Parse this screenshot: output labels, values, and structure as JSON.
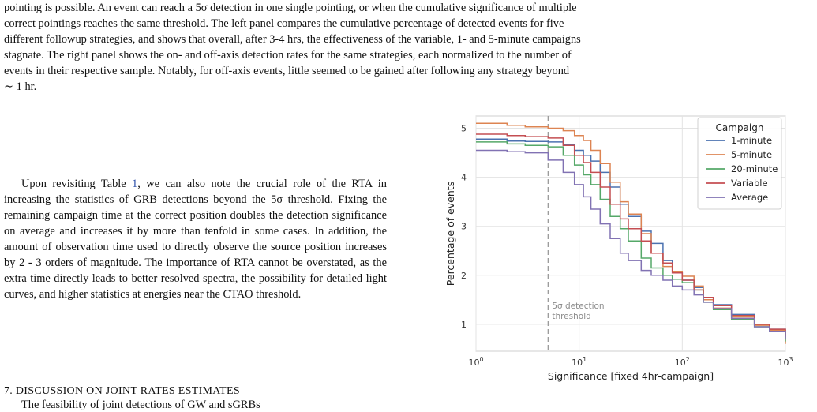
{
  "paper": {
    "intro_paragraph": [
      "pointing is possible. An event can reach a 5σ detection in one single pointing, or when the cumulative significance of multiple",
      "correct pointings reaches the same threshold. The left panel compares the cumulative percentage of detected events for five",
      "different followup strategies, and shows that overall, after 3-4 hrs, the effectiveness of the variable, 1- and 5-minute campaigns",
      "stagnate. The right panel shows the on- and off-axis detection rates for the same strategies, each normalized to the number of",
      "events in their respective sample. Notably, for off-axis events, little seemed to be gained after following any strategy beyond",
      "∼ 1 hr."
    ],
    "rta_paragraph_start": "Upon revisiting Table ",
    "table_ref": "1",
    "rta_paragraph_end": ", we can also note the crucial role of the RTA in increasing the statistics of GRB detections beyond the 5σ threshold. Fixing the remaining campaign time at the correct position doubles the detection significance on average and increases it by more than tenfold in some cases. In addition, the amount of observation time used to directly observe the source position increases by 2 - 3 orders of magnitude. The importance of RTA cannot be overstated, as the extra time directly leads to better resolved spectra, the possibility for detailed light curves, and higher statistics at energies near the CTAO threshold.",
    "section_heading": "7. DISCUSSION ON JOINT RATES ESTIMATES",
    "next_paragraph": "The feasibility of joint detections of GW and sGRBs"
  },
  "chart_data": {
    "type": "line",
    "title": "",
    "xlabel": "Significance [fixed 4hr-campaign]",
    "ylabel": "Percentage of events",
    "xscale": "log",
    "xlim": [
      1,
      1000
    ],
    "ylim": [
      0.45,
      5.25
    ],
    "xticks": [
      {
        "value": 1,
        "base": "10",
        "exp": "0"
      },
      {
        "value": 10,
        "base": "10",
        "exp": "1"
      },
      {
        "value": 100,
        "base": "10",
        "exp": "2"
      },
      {
        "value": 1000,
        "base": "10",
        "exp": "3"
      }
    ],
    "yticks": [
      1,
      2,
      3,
      4,
      5
    ],
    "grid": true,
    "legend_title": "Campaign",
    "legend_position": "top-right",
    "threshold": {
      "x": 5,
      "label_lines": [
        "5σ detection",
        "threshold"
      ],
      "color": "#9a9a9a"
    },
    "series": [
      {
        "name": "1-minute",
        "color": "#4c72b0",
        "points": [
          [
            1,
            4.78
          ],
          [
            2,
            4.74
          ],
          [
            3,
            4.73
          ],
          [
            5,
            4.72
          ],
          [
            7,
            4.66
          ],
          [
            9,
            4.55
          ],
          [
            11,
            4.45
          ],
          [
            13,
            4.33
          ],
          [
            16,
            4.1
          ],
          [
            20,
            3.8
          ],
          [
            25,
            3.45
          ],
          [
            30,
            3.2
          ],
          [
            40,
            2.9
          ],
          [
            50,
            2.65
          ],
          [
            65,
            2.3
          ],
          [
            80,
            2.05
          ],
          [
            100,
            1.9
          ],
          [
            130,
            1.75
          ],
          [
            160,
            1.55
          ],
          [
            200,
            1.4
          ],
          [
            300,
            1.2
          ],
          [
            500,
            1.0
          ],
          [
            700,
            0.9
          ],
          [
            1000,
            0.7
          ]
        ]
      },
      {
        "name": "5-minute",
        "color": "#dd8452",
        "points": [
          [
            1,
            5.1
          ],
          [
            2,
            5.06
          ],
          [
            3,
            5.03
          ],
          [
            5,
            5.0
          ],
          [
            7,
            4.95
          ],
          [
            9,
            4.85
          ],
          [
            11,
            4.75
          ],
          [
            13,
            4.55
          ],
          [
            16,
            4.28
          ],
          [
            20,
            3.9
          ],
          [
            25,
            3.5
          ],
          [
            30,
            3.25
          ],
          [
            40,
            2.85
          ],
          [
            50,
            2.45
          ],
          [
            65,
            2.18
          ],
          [
            80,
            2.08
          ],
          [
            100,
            1.98
          ],
          [
            130,
            1.78
          ],
          [
            160,
            1.5
          ],
          [
            200,
            1.33
          ],
          [
            300,
            1.15
          ],
          [
            500,
            0.98
          ],
          [
            700,
            0.88
          ],
          [
            1000,
            0.6
          ]
        ]
      },
      {
        "name": "20-minute",
        "color": "#55a868",
        "points": [
          [
            1,
            4.72
          ],
          [
            2,
            4.68
          ],
          [
            3,
            4.65
          ],
          [
            5,
            4.62
          ],
          [
            7,
            4.45
          ],
          [
            9,
            4.25
          ],
          [
            11,
            4.05
          ],
          [
            13,
            3.85
          ],
          [
            16,
            3.55
          ],
          [
            20,
            3.2
          ],
          [
            25,
            2.95
          ],
          [
            30,
            2.7
          ],
          [
            40,
            2.35
          ],
          [
            50,
            2.15
          ],
          [
            65,
            2.0
          ],
          [
            80,
            1.92
          ],
          [
            100,
            1.85
          ],
          [
            130,
            1.7
          ],
          [
            160,
            1.45
          ],
          [
            200,
            1.3
          ],
          [
            300,
            1.1
          ],
          [
            500,
            0.95
          ],
          [
            700,
            0.85
          ],
          [
            1000,
            0.65
          ]
        ]
      },
      {
        "name": "Variable",
        "color": "#c44e52",
        "points": [
          [
            1,
            4.88
          ],
          [
            2,
            4.85
          ],
          [
            3,
            4.83
          ],
          [
            5,
            4.8
          ],
          [
            7,
            4.65
          ],
          [
            9,
            4.45
          ],
          [
            11,
            4.3
          ],
          [
            13,
            4.1
          ],
          [
            16,
            3.8
          ],
          [
            20,
            3.45
          ],
          [
            25,
            3.15
          ],
          [
            30,
            2.95
          ],
          [
            40,
            2.7
          ],
          [
            50,
            2.45
          ],
          [
            65,
            2.25
          ],
          [
            80,
            2.05
          ],
          [
            100,
            1.9
          ],
          [
            130,
            1.7
          ],
          [
            160,
            1.55
          ],
          [
            200,
            1.38
          ],
          [
            300,
            1.18
          ],
          [
            500,
            1.0
          ],
          [
            700,
            0.9
          ],
          [
            1000,
            0.75
          ]
        ]
      },
      {
        "name": "Average",
        "color": "#8172b3",
        "points": [
          [
            1,
            4.55
          ],
          [
            2,
            4.52
          ],
          [
            3,
            4.5
          ],
          [
            5,
            4.35
          ],
          [
            7,
            4.1
          ],
          [
            9,
            3.85
          ],
          [
            11,
            3.6
          ],
          [
            13,
            3.35
          ],
          [
            16,
            3.05
          ],
          [
            20,
            2.75
          ],
          [
            25,
            2.45
          ],
          [
            30,
            2.3
          ],
          [
            40,
            2.1
          ],
          [
            50,
            2.0
          ],
          [
            65,
            1.9
          ],
          [
            80,
            1.78
          ],
          [
            100,
            1.7
          ],
          [
            130,
            1.6
          ],
          [
            160,
            1.45
          ],
          [
            200,
            1.32
          ],
          [
            300,
            1.12
          ],
          [
            500,
            0.95
          ],
          [
            700,
            0.85
          ],
          [
            1000,
            0.7
          ]
        ]
      }
    ]
  }
}
